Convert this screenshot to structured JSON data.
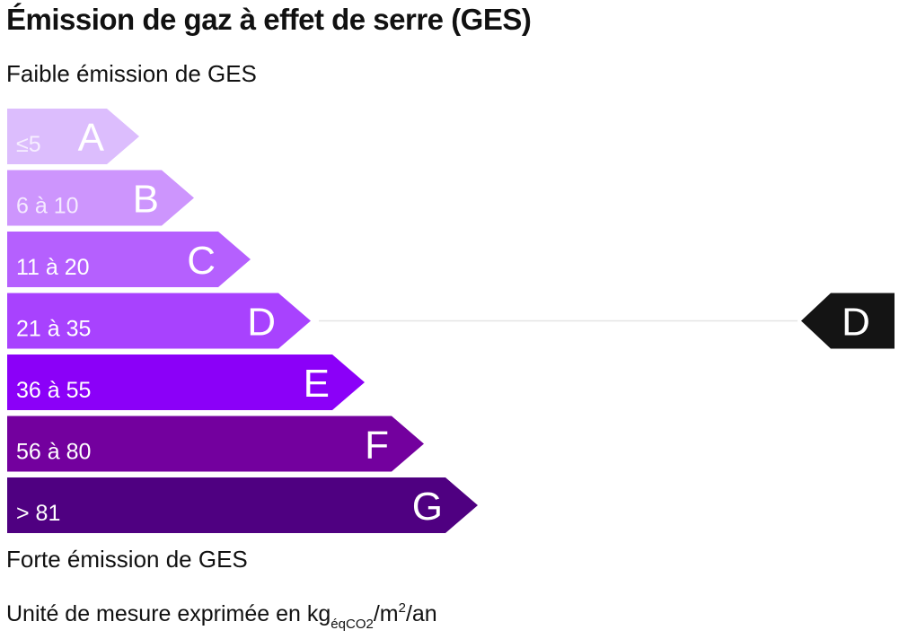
{
  "title": "Émission de gaz à effet de serre (GES)",
  "low_label": "Faible émission de GES",
  "high_label": "Forte émission de GES",
  "unit": {
    "prefix": "Unité de mesure exprimée en kg",
    "subscript": "éqCO2",
    "middle": "/m",
    "superscript": "2",
    "suffix": "/an"
  },
  "chart_data": {
    "type": "bar",
    "orientation": "horizontal",
    "categories": [
      "A",
      "B",
      "C",
      "D",
      "E",
      "F",
      "G"
    ],
    "ranges": [
      "≤5",
      "6 à 10",
      "11 à 20",
      "21 à 35",
      "36 à 55",
      "56 à 80",
      "> 81"
    ],
    "colors": [
      "#dcbdfd",
      "#cd95fd",
      "#b560fe",
      "#a842fe",
      "#8b00f8",
      "#73009e",
      "#4f0081"
    ],
    "range_text_opacity": [
      0.75,
      0.8,
      1,
      1,
      1,
      1,
      1
    ],
    "current_class": "D",
    "current_color": "#141414"
  }
}
